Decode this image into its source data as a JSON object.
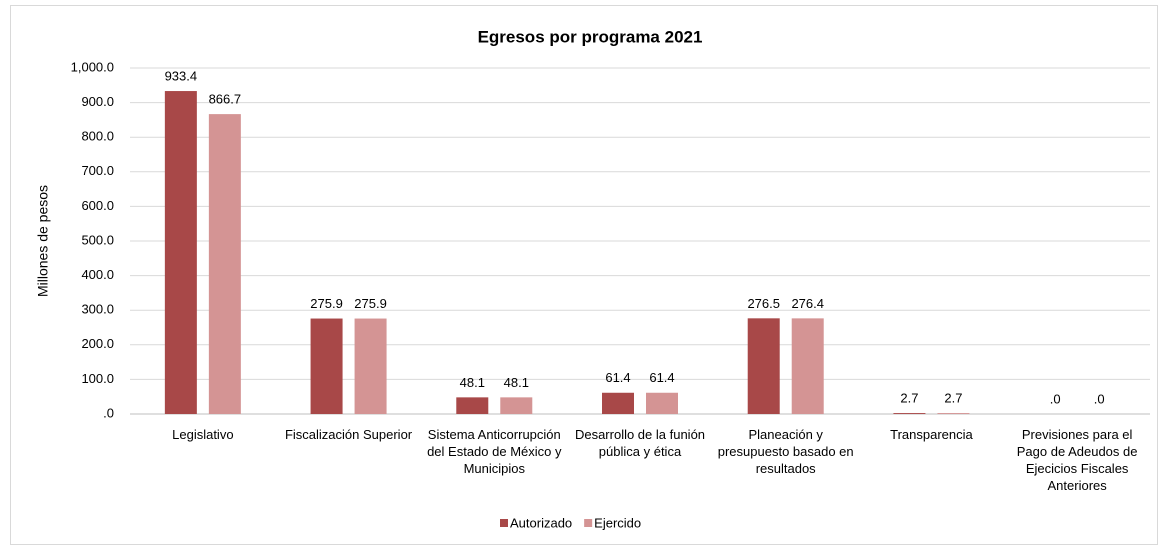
{
  "chart_data": {
    "type": "bar",
    "title": "Egresos por programa 2021",
    "y_label": "Millones de pesos",
    "categories": [
      "Legislativo",
      "Fiscalización Superior",
      "Sistema Anticorrupción del Estado de México y Municipios",
      "Desarrollo de la funión pública y ética",
      "Planeación y presupuesto basado en resultados",
      "Transparencia",
      "Previsiones para el Pago de Adeudos de Ejecicios Fiscales Anteriores"
    ],
    "series": [
      {
        "name": "Autorizado",
        "color": "#a84848",
        "values": [
          933.4,
          275.9,
          48.1,
          61.4,
          276.5,
          2.7,
          0
        ],
        "value_labels": [
          "933.4",
          "275.9",
          "48.1",
          "61.4",
          "276.5",
          "2.7",
          ".0"
        ]
      },
      {
        "name": "Ejercido",
        "color": "#d49494",
        "values": [
          866.7,
          275.9,
          48.1,
          61.4,
          276.4,
          2.7,
          0
        ],
        "value_labels": [
          "866.7",
          "275.9",
          "48.1",
          "61.4",
          "276.4",
          "2.7",
          ".0"
        ]
      }
    ],
    "ylim": [
      0,
      1000
    ],
    "yticks": [
      {
        "value": 0,
        "label": ".0"
      },
      {
        "value": 100,
        "label": "100.0"
      },
      {
        "value": 200,
        "label": "200.0"
      },
      {
        "value": 300,
        "label": "300.0"
      },
      {
        "value": 400,
        "label": "400.0"
      },
      {
        "value": 500,
        "label": "500.0"
      },
      {
        "value": 600,
        "label": "600.0"
      },
      {
        "value": 700,
        "label": "700.0"
      },
      {
        "value": 800,
        "label": "800.0"
      },
      {
        "value": 900,
        "label": "900.0"
      },
      {
        "value": 1000,
        "label": "1,000.0"
      }
    ],
    "grid": true,
    "legend": "bottom"
  }
}
